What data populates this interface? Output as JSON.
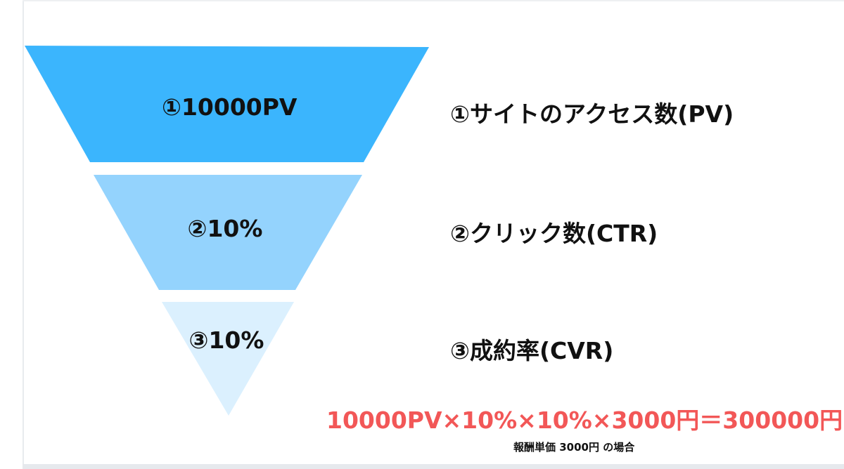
{
  "funnel": {
    "colors": {
      "stage1": "#3bb5fd",
      "stage2": "#94d3fd",
      "stage3": "#dbf0fe"
    },
    "segments": [
      {
        "label": "①10000PV"
      },
      {
        "label": "②10%"
      },
      {
        "label": "③10%"
      }
    ]
  },
  "stages": [
    {
      "label": "①サイトのアクセス数(PV)"
    },
    {
      "label": "②クリック数(CTR)"
    },
    {
      "label": "③成約率(CVR)"
    }
  ],
  "formula": {
    "text": "10000PV×10%×10%×3000円＝300000円",
    "color": "#f25757"
  },
  "note": {
    "text": "報酬単価 3000円 の場合"
  }
}
